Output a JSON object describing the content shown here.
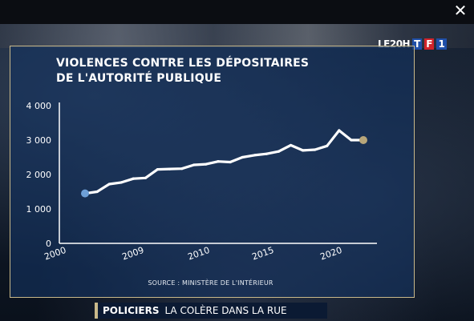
{
  "player": {
    "close_glyph": "✕"
  },
  "broadcaster": {
    "logo_text": "LE20H",
    "logo_letters": [
      "T",
      "F",
      "1"
    ]
  },
  "banner": {
    "bold": "POLICIERS",
    "text": "LA COLÈRE DANS LA RUE"
  },
  "source": "SOURCE : MINISTÈRE DE L'INTÉRIEUR",
  "chart_data": {
    "type": "line",
    "title_lines": [
      "VIOLENCES CONTRE LES DÉPOSITAIRES",
      "DE L'AUTORITÉ PUBLIQUE"
    ],
    "xlabel": "",
    "ylabel": "",
    "x_ticks": [
      2000,
      2009,
      2010,
      2015,
      2020
    ],
    "x_tick_labels": [
      "2000",
      "2009",
      "2010",
      "2015",
      "2020"
    ],
    "y_ticks": [
      0,
      1000,
      2000,
      3000,
      4000
    ],
    "y_tick_labels": [
      "0",
      "1 000",
      "2 000",
      "3 000",
      "4 000"
    ],
    "ylim": [
      0,
      4000
    ],
    "grid": false,
    "colors": {
      "line": "#ffffff",
      "start_marker": "#6ea0d8",
      "end_marker": "#b8a67a",
      "axis": "#ffffff"
    },
    "series": [
      {
        "values": [
          1450,
          1500,
          1720,
          1770,
          1880,
          1900,
          2150,
          2160,
          2170,
          2280,
          2300,
          2380,
          2360,
          2500,
          2560,
          2600,
          2670,
          2850,
          2700,
          2720,
          2830,
          3280,
          3000,
          3000
        ]
      }
    ]
  }
}
